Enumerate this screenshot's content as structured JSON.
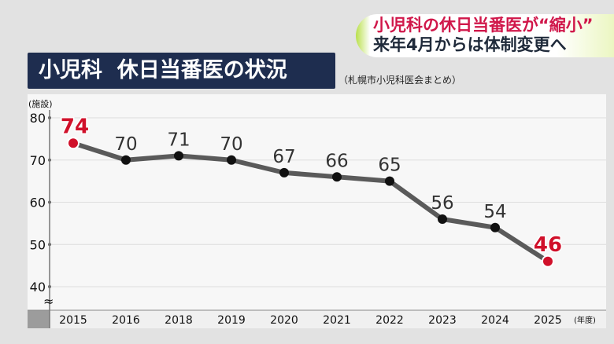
{
  "banner": {
    "line1": "小児科の休日当番医が“縮小”",
    "line2": "来年4月からは体制変更へ"
  },
  "title": "小児科  休日当番医の状況",
  "source": "（札幌市小児科医会まとめ）",
  "colors": {
    "highlight": "#d0102a",
    "line": "#5a5a5a",
    "point": "#111111",
    "title_bg": "#1e2d4f"
  },
  "chart_data": {
    "type": "line",
    "ylabel": "(施設)",
    "xlabel": "(年度)",
    "categories": [
      "2015",
      "2016",
      "2018",
      "2019",
      "2020",
      "2021",
      "2022",
      "2023",
      "2024",
      "2025"
    ],
    "values": [
      74,
      70,
      71,
      70,
      67,
      66,
      65,
      56,
      54,
      46
    ],
    "highlighted": [
      "2015",
      "2025"
    ],
    "yticks": [
      40,
      50,
      60,
      70,
      80
    ],
    "ylim": [
      40,
      80
    ],
    "axis_break": "≈",
    "grid": true
  }
}
